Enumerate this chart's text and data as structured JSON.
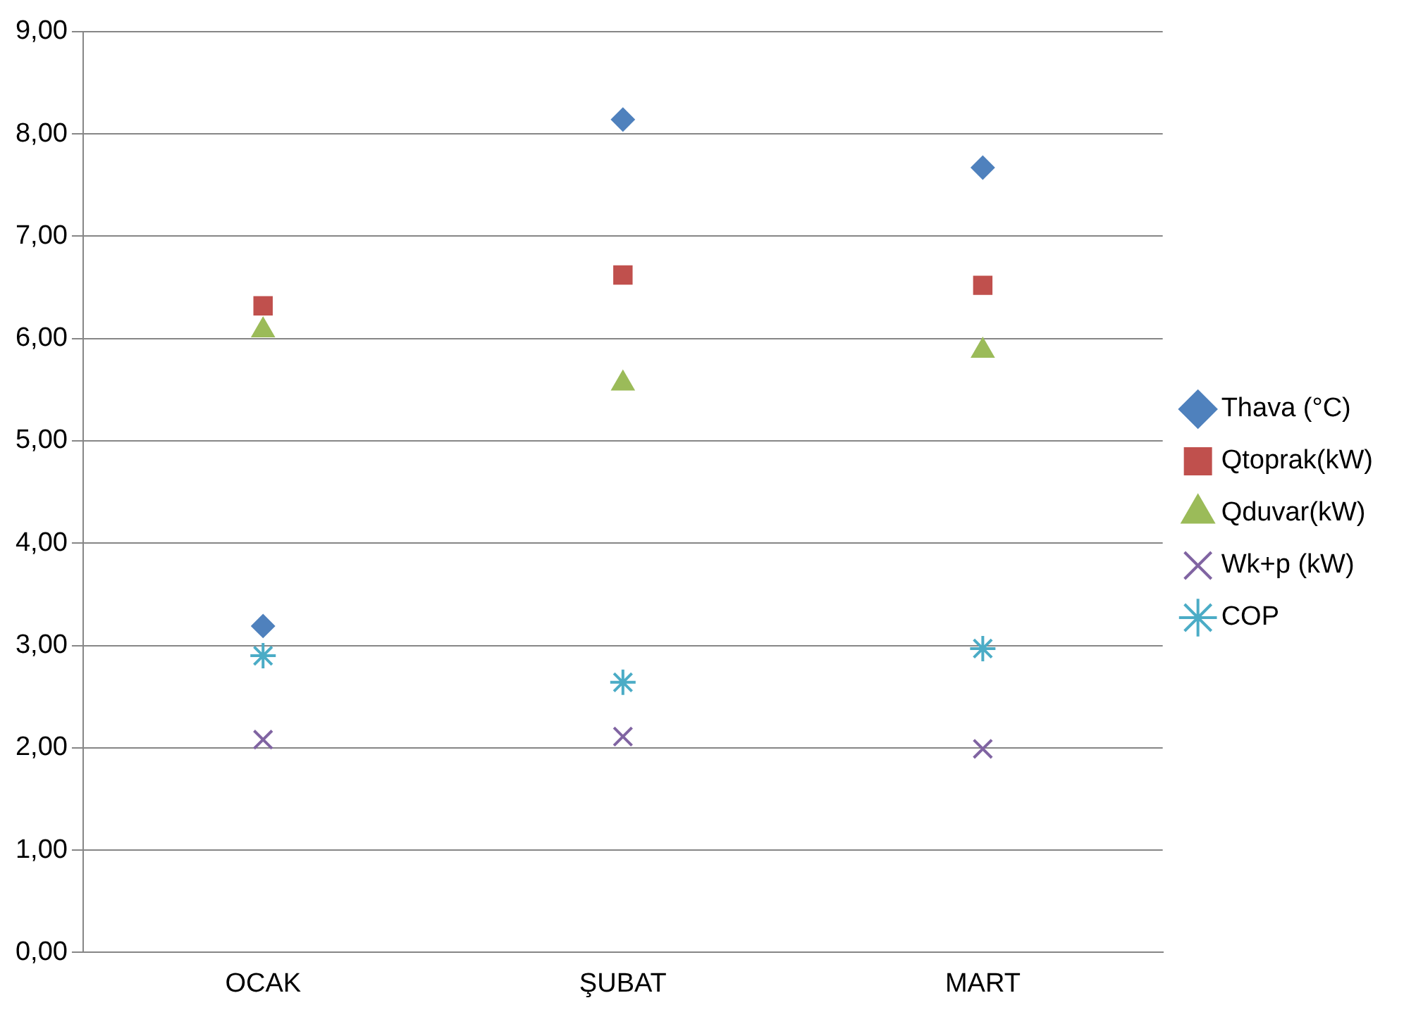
{
  "chart_data": {
    "type": "scatter",
    "categories": [
      "OCAK",
      "ŞUBAT",
      "MART"
    ],
    "series": [
      {
        "name": "Thava (°C)",
        "color": "#4f81bd",
        "marker": "diamond",
        "values": [
          3.19,
          8.14,
          7.67
        ]
      },
      {
        "name": "Qtoprak(kW)",
        "color": "#c0504d",
        "marker": "square",
        "values": [
          6.32,
          6.62,
          6.52
        ]
      },
      {
        "name": "Qduvar(kW)",
        "color": "#9bbb59",
        "marker": "triangle",
        "values": [
          6.08,
          5.56,
          5.88
        ]
      },
      {
        "name": "Wk+p (kW)",
        "color": "#8064a2",
        "marker": "cross",
        "values": [
          2.08,
          2.11,
          1.99
        ]
      },
      {
        "name": "COP",
        "color": "#4bacc6",
        "marker": "cross",
        "values": [
          2.9,
          2.64,
          2.97
        ]
      }
    ],
    "ylim": [
      0,
      9
    ],
    "yticks": [
      {
        "value": 0,
        "label": "0,00"
      },
      {
        "value": 1,
        "label": "1,00"
      },
      {
        "value": 2,
        "label": "2,00"
      },
      {
        "value": 3,
        "label": "3,00"
      },
      {
        "value": 4,
        "label": "4,00"
      },
      {
        "value": 5,
        "label": "5,00"
      },
      {
        "value": 6,
        "label": "6,00"
      },
      {
        "value": 7,
        "label": "7,00"
      },
      {
        "value": 8,
        "label": "8,00"
      },
      {
        "value": 9,
        "label": "9,00"
      }
    ],
    "grid": "y",
    "legend": "right"
  }
}
